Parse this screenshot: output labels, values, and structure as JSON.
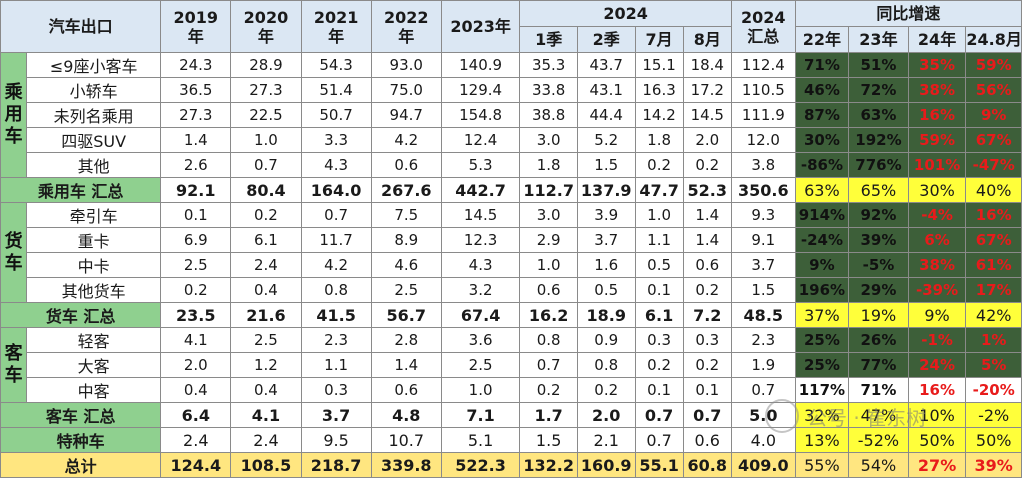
{
  "header": {
    "title": "汽车出口",
    "years": [
      {
        "top": "2019",
        "bottom": "年"
      },
      {
        "top": "2020",
        "bottom": "年"
      },
      {
        "top": "2021",
        "bottom": "年"
      },
      {
        "top": "2022",
        "bottom": "年"
      },
      {
        "top": "2023年",
        "bottom": ""
      }
    ],
    "group_2024": "2024",
    "sub_2024": [
      "1季",
      "2季",
      "7月",
      "8月"
    ],
    "total_2024": {
      "top": "2024",
      "bottom": "汇总"
    },
    "growth_group": "同比增速",
    "growth_cols": [
      "22年",
      "23年",
      "24年",
      "24.8月"
    ]
  },
  "categories": {
    "passenger": "乘用车",
    "truck": "货车",
    "bus": "客车"
  },
  "rows": [
    {
      "label": "≤9座小客车",
      "values": [
        "24.3",
        "28.9",
        "54.3",
        "93.0",
        "140.9",
        "35.3",
        "43.7",
        "15.1",
        "18.4",
        "112.4"
      ],
      "growth": [
        "71%",
        "51%",
        "35%",
        "59%"
      ]
    },
    {
      "label": "小轿车",
      "values": [
        "36.5",
        "27.3",
        "51.4",
        "75.0",
        "129.4",
        "33.8",
        "43.1",
        "16.3",
        "17.2",
        "110.5"
      ],
      "growth": [
        "46%",
        "72%",
        "38%",
        "56%"
      ]
    },
    {
      "label": "未列名乘用",
      "values": [
        "27.3",
        "22.5",
        "50.7",
        "94.7",
        "154.8",
        "38.8",
        "44.4",
        "14.2",
        "14.5",
        "111.9"
      ],
      "growth": [
        "87%",
        "63%",
        "16%",
        "9%"
      ]
    },
    {
      "label": "四驱SUV",
      "values": [
        "1.4",
        "1.0",
        "3.3",
        "4.2",
        "12.4",
        "3.0",
        "5.2",
        "1.8",
        "2.0",
        "12.0"
      ],
      "growth": [
        "30%",
        "192%",
        "59%",
        "67%"
      ]
    },
    {
      "label": "其他",
      "values": [
        "2.6",
        "0.7",
        "4.3",
        "0.6",
        "5.3",
        "1.8",
        "1.5",
        "0.2",
        "0.2",
        "3.8"
      ],
      "growth": [
        "-86%",
        "776%",
        "101%",
        "-47%"
      ]
    },
    {
      "label": "乘用车 汇总",
      "values": [
        "92.1",
        "80.4",
        "164.0",
        "267.6",
        "442.7",
        "112.7",
        "137.9",
        "47.7",
        "52.3",
        "350.6"
      ],
      "growth": [
        "63%",
        "65%",
        "30%",
        "40%"
      ]
    },
    {
      "label": "牵引车",
      "values": [
        "0.1",
        "0.2",
        "0.7",
        "7.5",
        "14.5",
        "3.0",
        "3.9",
        "1.0",
        "1.4",
        "9.3"
      ],
      "growth": [
        "914%",
        "92%",
        "-4%",
        "16%"
      ]
    },
    {
      "label": "重卡",
      "values": [
        "6.9",
        "6.1",
        "11.7",
        "8.9",
        "12.3",
        "2.9",
        "3.7",
        "1.1",
        "1.4",
        "9.1"
      ],
      "growth": [
        "-24%",
        "39%",
        "6%",
        "67%"
      ]
    },
    {
      "label": "中卡",
      "values": [
        "2.5",
        "2.4",
        "4.2",
        "4.6",
        "4.3",
        "1.0",
        "1.6",
        "0.5",
        "0.6",
        "3.7"
      ],
      "growth": [
        "9%",
        "-5%",
        "38%",
        "61%"
      ]
    },
    {
      "label": "其他货车",
      "values": [
        "0.2",
        "0.4",
        "0.8",
        "2.5",
        "3.2",
        "0.6",
        "0.5",
        "0.1",
        "0.2",
        "1.5"
      ],
      "growth": [
        "196%",
        "29%",
        "-39%",
        "17%"
      ]
    },
    {
      "label": "货车 汇总",
      "values": [
        "23.5",
        "21.6",
        "41.5",
        "56.7",
        "67.4",
        "16.2",
        "18.9",
        "6.1",
        "7.2",
        "48.5"
      ],
      "growth": [
        "37%",
        "19%",
        "9%",
        "42%"
      ]
    },
    {
      "label": "轻客",
      "values": [
        "4.1",
        "2.5",
        "2.3",
        "2.8",
        "3.6",
        "0.8",
        "0.9",
        "0.3",
        "0.3",
        "2.3"
      ],
      "growth": [
        "25%",
        "26%",
        "-1%",
        "1%"
      ]
    },
    {
      "label": "大客",
      "values": [
        "2.0",
        "1.2",
        "1.1",
        "1.4",
        "2.5",
        "0.7",
        "0.8",
        "0.2",
        "0.2",
        "1.9"
      ],
      "growth": [
        "25%",
        "77%",
        "24%",
        "5%"
      ]
    },
    {
      "label": "中客",
      "values": [
        "0.4",
        "0.4",
        "0.3",
        "0.6",
        "1.0",
        "0.2",
        "0.2",
        "0.1",
        "0.1",
        "0.7"
      ],
      "growth": [
        "117%",
        "71%",
        "16%",
        "-20%"
      ]
    },
    {
      "label": "客车 汇总",
      "values": [
        "6.4",
        "4.1",
        "3.7",
        "4.8",
        "7.1",
        "1.7",
        "2.0",
        "0.7",
        "0.7",
        "5.0"
      ],
      "growth": [
        "32%",
        "47%",
        "10%",
        "-2%"
      ]
    },
    {
      "label": "特种车",
      "values": [
        "2.4",
        "2.4",
        "9.5",
        "10.7",
        "5.1",
        "1.5",
        "2.1",
        "0.7",
        "0.6",
        "4.0"
      ],
      "growth": [
        "13%",
        "-52%",
        "50%",
        "50%"
      ]
    },
    {
      "label": "总计",
      "values": [
        "124.4",
        "108.5",
        "218.7",
        "339.8",
        "522.3",
        "132.2",
        "160.9",
        "55.1",
        "60.8",
        "409.0"
      ],
      "growth": [
        "55%",
        "54%",
        "27%",
        "39%"
      ]
    }
  ],
  "watermark": "公号 · 崔东树",
  "colors": {
    "header_bg": "#dbe7f3",
    "category_green": "#8fd08f",
    "growth_dark_green": "#3d5f39",
    "highlight_yellow": "#ffff3a",
    "total_row_yellow": "#ffe680",
    "negative_or_flag_red": "#e81b1b"
  }
}
